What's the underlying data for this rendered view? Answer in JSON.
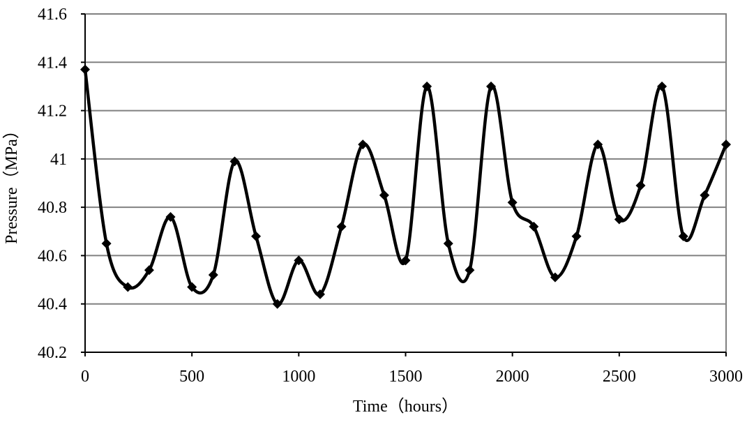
{
  "chart_data": {
    "type": "line",
    "title": "",
    "xlabel": "Time（hours）",
    "ylabel": "Pressure（MPa）",
    "xlim": [
      0,
      3000
    ],
    "ylim": [
      40.2,
      41.6
    ],
    "xticks": [
      0,
      500,
      1000,
      1500,
      2000,
      2500,
      3000
    ],
    "xtick_labels": [
      "0",
      "500",
      "1000",
      "1500",
      "2000",
      "2500",
      "3000"
    ],
    "yticks": [
      40.2,
      40.4,
      40.6,
      40.8,
      41.0,
      41.2,
      41.4,
      41.6
    ],
    "ytick_labels": [
      "40.2",
      "40.4",
      "40.6",
      "40.8",
      "41",
      "41.2",
      "41.4",
      "41.6"
    ],
    "grid": "horizontal",
    "legend": "none",
    "smooth": true,
    "marker": "diamond",
    "line_color": "#000000",
    "grid_color": "#808080",
    "series": [
      {
        "x": [
          0,
          100,
          200,
          300,
          400,
          500,
          600,
          700,
          800,
          900,
          1000,
          1100,
          1200,
          1300,
          1400,
          1500,
          1600,
          1700,
          1800,
          1900,
          2000,
          2100,
          2200,
          2300,
          2400,
          2500,
          2600,
          2700,
          2800,
          2900,
          3000
        ],
        "values": [
          41.37,
          40.65,
          40.47,
          40.54,
          40.76,
          40.47,
          40.52,
          40.99,
          40.68,
          40.4,
          40.58,
          40.44,
          40.72,
          41.06,
          40.85,
          40.58,
          41.3,
          40.65,
          40.54,
          41.3,
          40.82,
          40.72,
          40.51,
          40.68,
          41.06,
          40.75,
          40.89,
          41.3,
          40.68,
          40.85,
          41.06
        ]
      }
    ]
  }
}
